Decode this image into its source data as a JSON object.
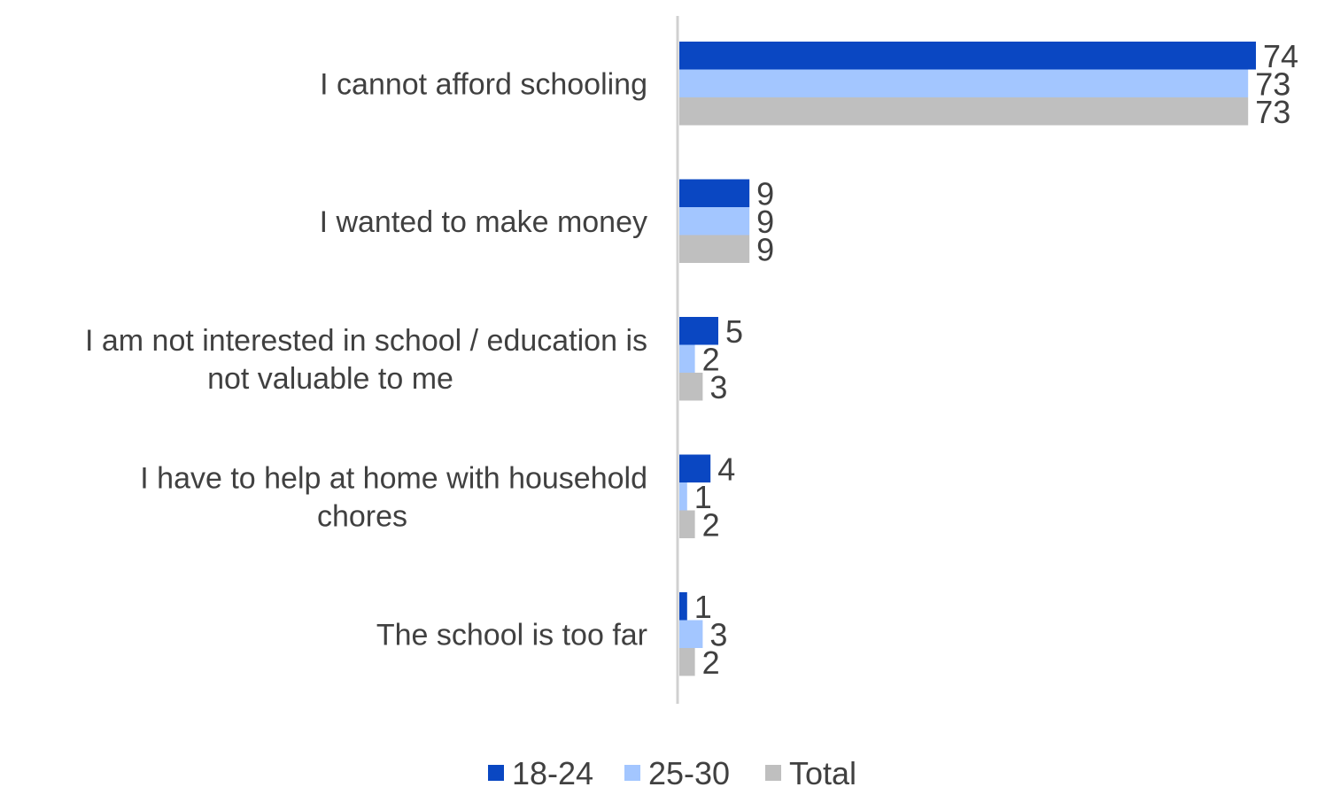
{
  "chart_data": {
    "type": "bar",
    "orientation": "horizontal",
    "categories": [
      [
        "I cannot afford schooling"
      ],
      [
        "I wanted to make money"
      ],
      [
        "I am not interested in school / education is",
        "not valuable to me"
      ],
      [
        "I have to help at home with household",
        "chores"
      ],
      [
        "The school is too far"
      ]
    ],
    "series": [
      {
        "name": "18-24",
        "color": "#0a47c2",
        "values": [
          74,
          9,
          5,
          4,
          1
        ]
      },
      {
        "name": "25-30",
        "color": "#a3c6ff",
        "values": [
          73,
          9,
          2,
          1,
          3
        ]
      },
      {
        "name": "Total",
        "color": "#bfbfbf",
        "values": [
          73,
          9,
          3,
          2,
          2
        ]
      }
    ],
    "xlim": [
      0,
      74
    ],
    "grid": false,
    "legend_position": "bottom"
  }
}
